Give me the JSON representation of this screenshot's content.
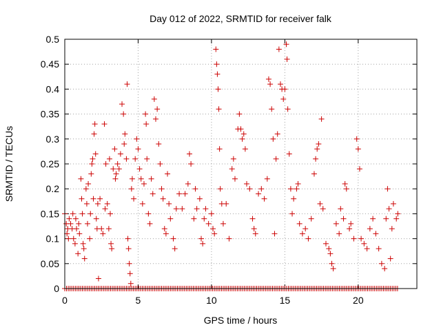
{
  "chart_data": {
    "type": "scatter",
    "title": "Day 012 of 2022, SRMTID for receiver falk",
    "xlabel": "GPS time / hours",
    "ylabel": "SRMTID / TECUs",
    "xlim": [
      0,
      24
    ],
    "ylim": [
      0,
      0.5
    ],
    "xticks": [
      0,
      5,
      10,
      15,
      20
    ],
    "yticks": [
      0,
      0.05,
      0.1,
      0.15,
      0.2,
      0.25,
      0.3,
      0.35,
      0.4,
      0.45,
      0.5
    ],
    "grid": true,
    "marker": "plus",
    "color": "#cc0000",
    "zero_markers_from": 0.0,
    "zero_markers_to": 22.7,
    "series": [
      {
        "values": [
          [
            0.0,
            0.15
          ],
          [
            0.1,
            0.13
          ],
          [
            0.15,
            0.11
          ],
          [
            0.2,
            0.12
          ],
          [
            0.25,
            0.1
          ],
          [
            0.3,
            0.14
          ],
          [
            0.4,
            0.13
          ],
          [
            0.5,
            0.12
          ],
          [
            0.55,
            0.15
          ],
          [
            0.6,
            0.1
          ],
          [
            0.7,
            0.09
          ],
          [
            0.75,
            0.14
          ],
          [
            0.8,
            0.12
          ],
          [
            0.9,
            0.07
          ],
          [
            0.95,
            0.13
          ],
          [
            1.0,
            0.11
          ],
          [
            1.1,
            0.22
          ],
          [
            1.15,
            0.18
          ],
          [
            1.2,
            0.15
          ],
          [
            1.25,
            0.09
          ],
          [
            1.3,
            0.08
          ],
          [
            1.35,
            0.06
          ],
          [
            1.45,
            0.2
          ],
          [
            1.5,
            0.17
          ],
          [
            1.55,
            0.13
          ],
          [
            1.6,
            0.21
          ],
          [
            1.7,
            0.1
          ],
          [
            1.75,
            0.15
          ],
          [
            1.8,
            0.23
          ],
          [
            1.85,
            0.25
          ],
          [
            1.9,
            0.26
          ],
          [
            1.95,
            0.18
          ],
          [
            2.0,
            0.31
          ],
          [
            2.05,
            0.33
          ],
          [
            2.1,
            0.27
          ],
          [
            2.15,
            0.14
          ],
          [
            2.2,
            0.12
          ],
          [
            2.25,
            0.17
          ],
          [
            2.3,
            0.02
          ],
          [
            2.4,
            0.18
          ],
          [
            2.5,
            0.12
          ],
          [
            2.6,
            0.11
          ],
          [
            2.7,
            0.33
          ],
          [
            2.75,
            0.16
          ],
          [
            2.8,
            0.25
          ],
          [
            2.9,
            0.17
          ],
          [
            3.0,
            0.12
          ],
          [
            3.05,
            0.26
          ],
          [
            3.1,
            0.15
          ],
          [
            3.15,
            0.09
          ],
          [
            3.2,
            0.08
          ],
          [
            3.3,
            0.24
          ],
          [
            3.4,
            0.28
          ],
          [
            3.45,
            0.22
          ],
          [
            3.5,
            0.23
          ],
          [
            3.6,
            0.25
          ],
          [
            3.7,
            0.24
          ],
          [
            3.8,
            0.27
          ],
          [
            3.9,
            0.37
          ],
          [
            4.0,
            0.35
          ],
          [
            4.05,
            0.29
          ],
          [
            4.1,
            0.31
          ],
          [
            4.2,
            0.26
          ],
          [
            4.25,
            0.41
          ],
          [
            4.3,
            0.1
          ],
          [
            4.35,
            0.08
          ],
          [
            4.4,
            0.05
          ],
          [
            4.45,
            0.03
          ],
          [
            4.5,
            0.01
          ],
          [
            4.55,
            0.2
          ],
          [
            4.6,
            0.22
          ],
          [
            4.7,
            0.18
          ],
          [
            4.8,
            0.26
          ],
          [
            4.9,
            0.3
          ],
          [
            5.0,
            0.28
          ],
          [
            5.1,
            0.24
          ],
          [
            5.2,
            0.22
          ],
          [
            5.3,
            0.17
          ],
          [
            5.4,
            0.21
          ],
          [
            5.5,
            0.35
          ],
          [
            5.55,
            0.33
          ],
          [
            5.6,
            0.26
          ],
          [
            5.7,
            0.15
          ],
          [
            5.8,
            0.13
          ],
          [
            5.9,
            0.22
          ],
          [
            6.0,
            0.19
          ],
          [
            6.1,
            0.38
          ],
          [
            6.2,
            0.34
          ],
          [
            6.3,
            0.36
          ],
          [
            6.4,
            0.29
          ],
          [
            6.5,
            0.25
          ],
          [
            6.6,
            0.2
          ],
          [
            6.7,
            0.18
          ],
          [
            6.8,
            0.12
          ],
          [
            6.9,
            0.11
          ],
          [
            7.0,
            0.23
          ],
          [
            7.1,
            0.17
          ],
          [
            7.2,
            0.14
          ],
          [
            7.4,
            0.1
          ],
          [
            7.5,
            0.08
          ],
          [
            7.6,
            0.16
          ],
          [
            7.8,
            0.19
          ],
          [
            8.0,
            0.16
          ],
          [
            8.2,
            0.19
          ],
          [
            8.4,
            0.21
          ],
          [
            8.5,
            0.27
          ],
          [
            8.6,
            0.25
          ],
          [
            8.8,
            0.14
          ],
          [
            8.9,
            0.2
          ],
          [
            9.0,
            0.16
          ],
          [
            9.2,
            0.18
          ],
          [
            9.3,
            0.1
          ],
          [
            9.4,
            0.09
          ],
          [
            9.5,
            0.14
          ],
          [
            9.6,
            0.16
          ],
          [
            9.8,
            0.13
          ],
          [
            10.0,
            0.15
          ],
          [
            10.1,
            0.12
          ],
          [
            10.2,
            0.11
          ],
          [
            10.3,
            0.48
          ],
          [
            10.35,
            0.45
          ],
          [
            10.4,
            0.43
          ],
          [
            10.45,
            0.4
          ],
          [
            10.5,
            0.36
          ],
          [
            10.55,
            0.28
          ],
          [
            10.6,
            0.2
          ],
          [
            10.7,
            0.17
          ],
          [
            10.8,
            0.13
          ],
          [
            11.0,
            0.17
          ],
          [
            11.2,
            0.1
          ],
          [
            11.4,
            0.24
          ],
          [
            11.5,
            0.26
          ],
          [
            11.6,
            0.22
          ],
          [
            11.8,
            0.32
          ],
          [
            11.9,
            0.35
          ],
          [
            12.0,
            0.32
          ],
          [
            12.1,
            0.3
          ],
          [
            12.2,
            0.31
          ],
          [
            12.3,
            0.28
          ],
          [
            12.4,
            0.21
          ],
          [
            12.6,
            0.2
          ],
          [
            12.8,
            0.14
          ],
          [
            12.9,
            0.12
          ],
          [
            13.0,
            0.11
          ],
          [
            13.2,
            0.19
          ],
          [
            13.4,
            0.2
          ],
          [
            13.6,
            0.18
          ],
          [
            13.8,
            0.22
          ],
          [
            13.9,
            0.42
          ],
          [
            14.0,
            0.41
          ],
          [
            14.1,
            0.36
          ],
          [
            14.2,
            0.3
          ],
          [
            14.3,
            0.11
          ],
          [
            14.4,
            0.26
          ],
          [
            14.5,
            0.31
          ],
          [
            14.6,
            0.48
          ],
          [
            14.7,
            0.41
          ],
          [
            14.8,
            0.4
          ],
          [
            14.9,
            0.38
          ],
          [
            15.0,
            0.4
          ],
          [
            15.1,
            0.49
          ],
          [
            15.15,
            0.46
          ],
          [
            15.2,
            0.36
          ],
          [
            15.3,
            0.27
          ],
          [
            15.4,
            0.2
          ],
          [
            15.5,
            0.15
          ],
          [
            15.6,
            0.18
          ],
          [
            15.8,
            0.2
          ],
          [
            15.9,
            0.21
          ],
          [
            16.0,
            0.13
          ],
          [
            16.2,
            0.11
          ],
          [
            16.4,
            0.12
          ],
          [
            16.6,
            0.1
          ],
          [
            16.8,
            0.14
          ],
          [
            17.0,
            0.23
          ],
          [
            17.1,
            0.26
          ],
          [
            17.2,
            0.28
          ],
          [
            17.3,
            0.29
          ],
          [
            17.4,
            0.17
          ],
          [
            17.5,
            0.34
          ],
          [
            17.6,
            0.16
          ],
          [
            17.8,
            0.09
          ],
          [
            18.0,
            0.08
          ],
          [
            18.1,
            0.07
          ],
          [
            18.2,
            0.05
          ],
          [
            18.3,
            0.04
          ],
          [
            18.5,
            0.13
          ],
          [
            18.7,
            0.11
          ],
          [
            18.8,
            0.16
          ],
          [
            19.0,
            0.14
          ],
          [
            19.1,
            0.21
          ],
          [
            19.2,
            0.2
          ],
          [
            19.4,
            0.12
          ],
          [
            19.5,
            0.13
          ],
          [
            19.7,
            0.1
          ],
          [
            19.9,
            0.3
          ],
          [
            20.0,
            0.28
          ],
          [
            20.1,
            0.24
          ],
          [
            20.2,
            0.1
          ],
          [
            20.4,
            0.09
          ],
          [
            20.6,
            0.08
          ],
          [
            20.8,
            0.12
          ],
          [
            21.0,
            0.14
          ],
          [
            21.2,
            0.11
          ],
          [
            21.4,
            0.08
          ],
          [
            21.6,
            0.05
          ],
          [
            21.8,
            0.04
          ],
          [
            21.9,
            0.14
          ],
          [
            22.0,
            0.2
          ],
          [
            22.1,
            0.16
          ],
          [
            22.2,
            0.06
          ],
          [
            22.3,
            0.12
          ],
          [
            22.4,
            0.17
          ],
          [
            22.6,
            0.14
          ],
          [
            22.7,
            0.15
          ]
        ]
      }
    ]
  }
}
